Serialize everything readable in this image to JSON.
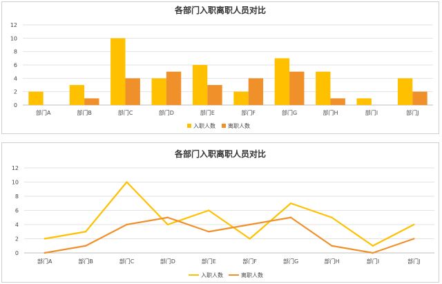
{
  "colors": {
    "hire": "#FFC000",
    "leave": "#F0902A"
  },
  "chart_data": [
    {
      "type": "bar",
      "title": "各部门入职离职人员对比",
      "categories": [
        "部门A",
        "部门B",
        "部门C",
        "部门D",
        "部门E",
        "部门F",
        "部门G",
        "部门H",
        "部门I",
        "部门J"
      ],
      "series": [
        {
          "name": "入职人数",
          "values": [
            2,
            3,
            10,
            4,
            6,
            2,
            7,
            5,
            1,
            4
          ]
        },
        {
          "name": "离职人数",
          "values": [
            0,
            1,
            4,
            5,
            3,
            4,
            5,
            1,
            0,
            2
          ]
        }
      ],
      "yticks": [
        "0",
        "2",
        "4",
        "6",
        "8",
        "10",
        "12"
      ],
      "ylim": [
        0,
        12
      ],
      "grid": true,
      "legend": "bottom"
    },
    {
      "type": "line",
      "title": "各部门入职离职人员对比",
      "categories": [
        "部门A",
        "部门B",
        "部门C",
        "部门D",
        "部门E",
        "部门F",
        "部门G",
        "部门H",
        "部门I",
        "部门J"
      ],
      "series": [
        {
          "name": "入职人数",
          "values": [
            2,
            3,
            10,
            4,
            6,
            2,
            7,
            5,
            1,
            4
          ]
        },
        {
          "name": "离职人数",
          "values": [
            0,
            1,
            4,
            5,
            3,
            4,
            5,
            1,
            0,
            2
          ]
        }
      ],
      "yticks": [
        "0",
        "2",
        "4",
        "6",
        "8",
        "10",
        "12"
      ],
      "ylim": [
        0,
        12
      ],
      "grid": true,
      "legend": "bottom"
    }
  ]
}
